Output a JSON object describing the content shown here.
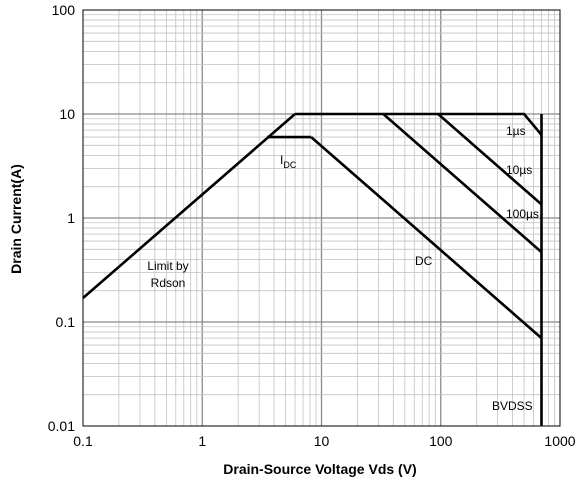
{
  "chart_data": {
    "type": "line",
    "title": "",
    "xlabel": "Drain-Source Voltage Vds (V)",
    "ylabel": "Drain Current(A)",
    "x_scale": "log",
    "y_scale": "log",
    "xlim": [
      0.1,
      1000
    ],
    "ylim": [
      0.01,
      100
    ],
    "grid": true,
    "x_ticks": [
      "0.1",
      "1",
      "10",
      "100",
      "1000"
    ],
    "y_ticks": [
      "0.01",
      "0.1",
      "1",
      "10",
      "100"
    ],
    "series": [
      {
        "name": "Limit by Rdson",
        "x": [
          0.1,
          6
        ],
        "y": [
          0.17,
          10
        ]
      },
      {
        "name": "1µs",
        "x": [
          6,
          500,
          700
        ],
        "y": [
          10,
          10,
          6.3
        ]
      },
      {
        "name": "10µs",
        "x": [
          95,
          700
        ],
        "y": [
          10,
          1.35
        ]
      },
      {
        "name": "100µs",
        "x": [
          33,
          700
        ],
        "y": [
          10,
          0.47
        ]
      },
      {
        "name": "IDC",
        "x": [
          3.5,
          8.2
        ],
        "y": [
          6,
          6
        ]
      },
      {
        "name": "DC",
        "x": [
          8.2,
          700
        ],
        "y": [
          6,
          0.07
        ]
      },
      {
        "name": "BVDSS",
        "x": [
          700,
          700
        ],
        "y": [
          0.01,
          10
        ]
      }
    ],
    "annotations": {
      "rdson_line1": "Limit by",
      "rdson_line2": "Rdson",
      "idc_main": "I",
      "idc_sub": "DC",
      "dc": "DC",
      "us1": "1µs",
      "us10": "10µs",
      "us100": "100µs",
      "bvdss": "BVDSS"
    }
  }
}
